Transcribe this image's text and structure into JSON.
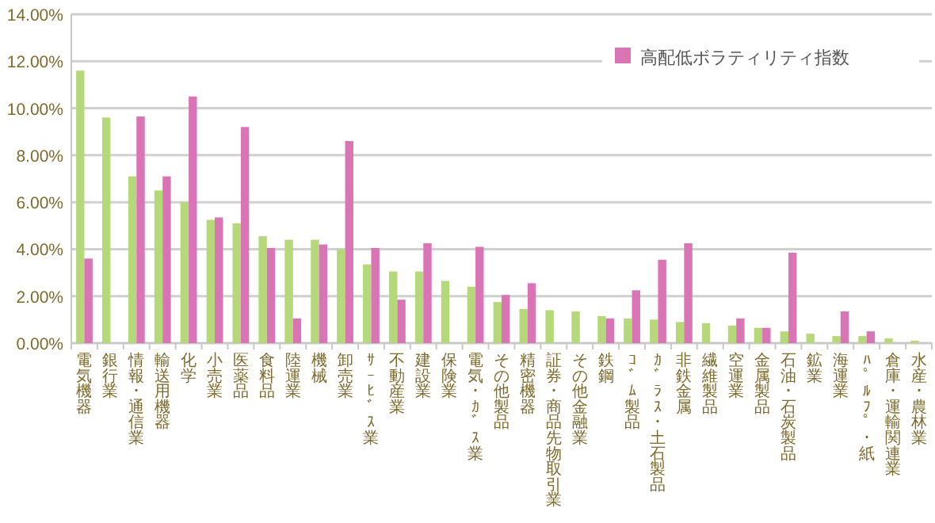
{
  "chart_data": {
    "type": "bar",
    "categories": [
      "電気機器",
      "銀行業",
      "情報･通信業",
      "輸送用機器",
      "化学",
      "小売業",
      "医薬品",
      "食料品",
      "陸運業",
      "機械",
      "卸売業",
      "ｻｰﾋﾞｽ業",
      "不動産業",
      "建設業",
      "保険業",
      "電気･ｶﾞｽ業",
      "その他製品",
      "精密機器",
      "証券･商品先物取引業",
      "その他金融業",
      "鉄鋼",
      "ｺﾞﾑ製品",
      "ｶﾞﾗｽ･土石製品",
      "非鉄金属",
      "繊維製品",
      "空運業",
      "金属製品",
      "石油･石炭製品",
      "鉱業",
      "海運業",
      "ﾊﾟﾙﾌﾟ･紙",
      "倉庫･運輸関連業",
      "水産･農林業"
    ],
    "series": [
      {
        "color": "#b5d97a",
        "values": [
          11.6,
          9.6,
          7.1,
          6.5,
          6.0,
          5.25,
          5.1,
          4.55,
          4.4,
          4.4,
          4.0,
          3.35,
          3.05,
          3.05,
          2.65,
          2.4,
          1.75,
          1.45,
          1.4,
          1.35,
          1.15,
          1.05,
          1.0,
          0.9,
          0.85,
          0.75,
          0.65,
          0.5,
          0.4,
          0.3,
          0.3,
          0.2,
          0.1
        ]
      },
      {
        "name": "高配低ボラティリティ指数",
        "color": "#d974b5",
        "values": [
          3.6,
          0,
          9.65,
          7.1,
          10.5,
          5.35,
          9.2,
          4.05,
          1.05,
          4.2,
          8.6,
          4.05,
          1.85,
          4.25,
          0,
          4.1,
          2.05,
          2.55,
          0,
          0,
          1.05,
          2.25,
          3.55,
          4.25,
          0,
          1.05,
          0.65,
          3.85,
          0,
          1.35,
          0.5,
          0,
          0
        ]
      }
    ],
    "ylim": [
      0,
      14
    ],
    "yticks": [
      {
        "value": 0,
        "label": "0.00%"
      },
      {
        "value": 2,
        "label": "2.00%"
      },
      {
        "value": 4,
        "label": "4.00%"
      },
      {
        "value": 6,
        "label": "6.00%"
      },
      {
        "value": 8,
        "label": "8.00%"
      },
      {
        "value": 10,
        "label": "10.00%"
      },
      {
        "value": 12,
        "label": "12.00%"
      },
      {
        "value": 14,
        "label": "14.00%"
      }
    ],
    "grid": "y",
    "legend": "top right"
  }
}
